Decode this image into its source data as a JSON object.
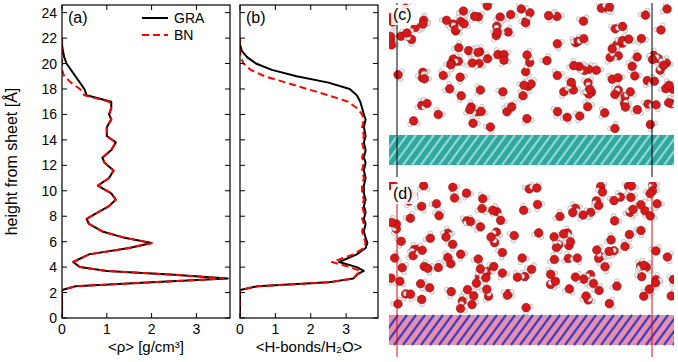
{
  "chart_data": [
    {
      "type": "line",
      "title": "(a)",
      "orientation": "horizontal",
      "x_label": "<ρ> [g/cm³]",
      "y_label": "height from sheet [Å]",
      "xlim": [
        0,
        3.75
      ],
      "xticks": [
        0,
        1,
        2,
        3
      ],
      "ylim": [
        0,
        24.6
      ],
      "yticks": [
        0,
        2,
        4,
        6,
        8,
        10,
        12,
        14,
        16,
        18,
        20,
        22,
        24
      ],
      "legend": "upper right",
      "y": [
        0,
        2.2,
        2.5,
        2.8,
        3.1,
        3.4,
        3.7,
        4.0,
        4.4,
        5.0,
        5.5,
        5.9,
        6.3,
        6.8,
        7.4,
        7.8,
        8.3,
        8.8,
        9.3,
        9.8,
        10.4,
        11.0,
        11.6,
        12.2,
        12.6,
        13.2,
        13.8,
        14.3,
        15.0,
        15.6,
        16.0,
        16.5,
        17.0,
        17.5,
        18.0,
        18.5,
        19.0,
        19.5,
        20.0,
        20.5,
        21.0,
        21.5,
        22.0
      ],
      "series": [
        {
          "name": "GRA",
          "color": "#000000",
          "line_style": "solid",
          "values": [
            0,
            0,
            0.3,
            2.0,
            3.7,
            2.5,
            1.0,
            0.4,
            0.25,
            0.6,
            1.5,
            2.0,
            1.4,
            0.9,
            0.6,
            0.55,
            0.8,
            1.05,
            1.2,
            1.1,
            0.8,
            1.05,
            1.15,
            0.95,
            0.9,
            1.1,
            1.2,
            1.0,
            1.0,
            1.1,
            1.05,
            1.1,
            1.1,
            0.55,
            0.5,
            0.4,
            0.3,
            0.2,
            0.1,
            0.05,
            0.02,
            0,
            0
          ]
        },
        {
          "name": "BN",
          "color": "#ff0000",
          "line_style": "dashed",
          "values": [
            0,
            0,
            0.3,
            2.0,
            3.6,
            2.5,
            1.0,
            0.4,
            0.25,
            0.6,
            1.5,
            2.0,
            1.4,
            0.9,
            0.6,
            0.55,
            0.8,
            1.05,
            1.2,
            1.1,
            0.8,
            1.05,
            1.15,
            0.95,
            0.9,
            1.1,
            1.2,
            1.0,
            1.0,
            1.1,
            1.05,
            1.1,
            1.05,
            0.5,
            0.4,
            0.2,
            0.05,
            0,
            0,
            0,
            0,
            0,
            0
          ]
        }
      ]
    },
    {
      "type": "line",
      "title": "(b)",
      "orientation": "horizontal",
      "x_label": "<H-bonds/H₂O>",
      "xlim": [
        0,
        3.9
      ],
      "xticks": [
        0,
        1,
        2,
        3
      ],
      "ylim": [
        0,
        24.6
      ],
      "yticks": [
        0,
        2,
        4,
        6,
        8,
        10,
        12,
        14,
        16,
        18,
        20,
        22,
        24
      ],
      "tick_labels": "x",
      "y": [
        0,
        2.2,
        2.5,
        2.8,
        3.1,
        3.4,
        3.7,
        4.0,
        4.4,
        5.0,
        5.5,
        5.9,
        6.3,
        6.8,
        7.4,
        7.8,
        8.3,
        8.8,
        9.3,
        9.8,
        10.4,
        11.0,
        11.6,
        12.2,
        12.6,
        13.2,
        13.8,
        14.3,
        15.0,
        15.6,
        16.0,
        16.5,
        17.0,
        17.5,
        18.0,
        18.5,
        19.0,
        19.5,
        20.0,
        20.5,
        21.0,
        21.5,
        22.0
      ],
      "series": [
        {
          "color": "#000000",
          "line_style": "solid",
          "values": [
            0,
            0,
            0.5,
            2.5,
            3.2,
            3.3,
            3.5,
            3.3,
            2.8,
            3.3,
            3.55,
            3.6,
            3.55,
            3.5,
            3.55,
            3.5,
            3.55,
            3.5,
            3.55,
            3.5,
            3.5,
            3.55,
            3.5,
            3.55,
            3.5,
            3.55,
            3.5,
            3.55,
            3.5,
            3.55,
            3.5,
            3.45,
            3.4,
            3.3,
            3.1,
            2.5,
            1.6,
            0.9,
            0.45,
            0.2,
            0.05,
            0,
            0
          ]
        },
        {
          "color": "#ff0000",
          "line_style": "dashed",
          "values": [
            0,
            0,
            0.5,
            2.5,
            3.2,
            3.3,
            3.4,
            3.1,
            2.6,
            3.2,
            3.5,
            3.55,
            3.5,
            3.45,
            3.5,
            3.45,
            3.5,
            3.45,
            3.5,
            3.45,
            3.45,
            3.5,
            3.45,
            3.5,
            3.45,
            3.5,
            3.45,
            3.5,
            3.45,
            3.5,
            3.45,
            3.3,
            3.05,
            2.5,
            1.9,
            1.3,
            0.7,
            0.3,
            0.1,
            0.02,
            0,
            0,
            0
          ]
        }
      ]
    }
  ],
  "images": [
    {
      "label": "(c)"
    },
    {
      "label": "(d)"
    }
  ]
}
